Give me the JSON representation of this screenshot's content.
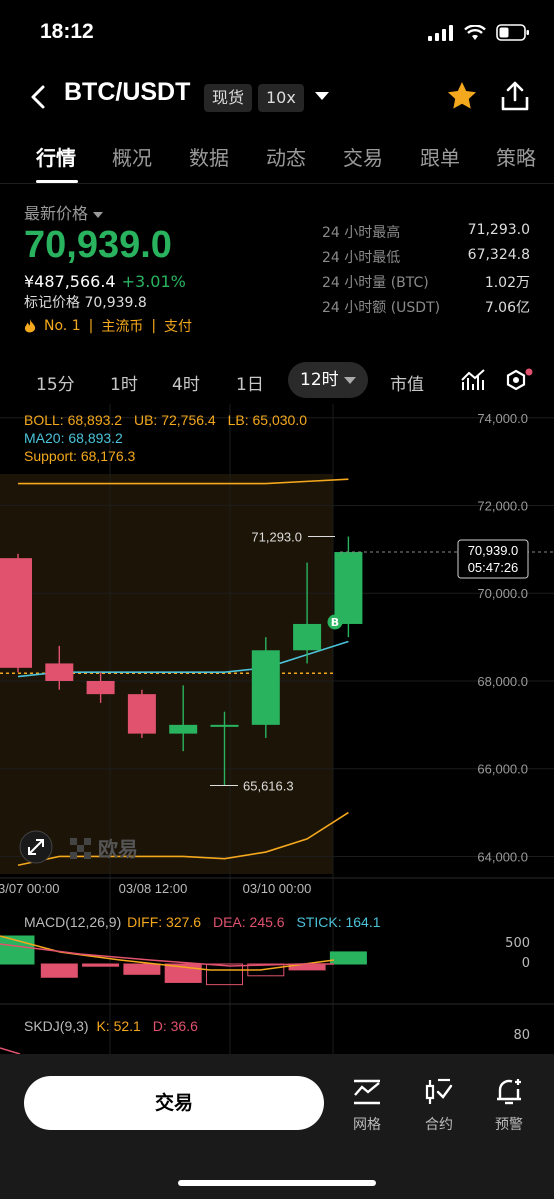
{
  "status_bar": {
    "time": "18:12"
  },
  "header": {
    "pair": "BTC/USDT",
    "market_type": "现货",
    "leverage": "10x"
  },
  "tabs": [
    {
      "label": "行情",
      "active": true
    },
    {
      "label": "概况"
    },
    {
      "label": "数据"
    },
    {
      "label": "动态"
    },
    {
      "label": "交易"
    },
    {
      "label": "跟单"
    },
    {
      "label": "策略"
    }
  ],
  "price": {
    "label": "最新价格",
    "last": "70,939.0",
    "cny": "¥487,566.4",
    "change": "+3.01%",
    "mark_label": "标记价格",
    "mark_value": "70,939.8",
    "tags": [
      "No. 1",
      "主流币",
      "支付"
    ]
  },
  "stats": [
    {
      "label": "24 小时最高",
      "value": "71,293.0"
    },
    {
      "label": "24 小时最低",
      "value": "67,324.8"
    },
    {
      "label": "24 小时量 (BTC)",
      "value": "1.02万"
    },
    {
      "label": "24 小时额 (USDT)",
      "value": "7.06亿"
    }
  ],
  "intervals": [
    "15分",
    "1时",
    "4时",
    "1日",
    "12时",
    "市值"
  ],
  "active_interval": "12时",
  "chart_legend": {
    "boll": "BOLL: 68,893.2",
    "ub": "UB: 72,756.4",
    "lb": "LB: 65,030.0",
    "ma20": "MA20: 68,893.2",
    "support": "Support: 68,176.3"
  },
  "chart_labels": {
    "high_marker": "71,293.0",
    "low_marker": "65,616.3",
    "current_price": "70,939.0",
    "countdown": "05:47:26",
    "buy_badge": "B",
    "watermark": "欧易"
  },
  "chart_data": {
    "type": "candlestick",
    "y_ticks": [
      "74,000.0",
      "72,000.0",
      "70,000.0",
      "68,000.0",
      "66,000.0",
      "64,000.0"
    ],
    "y_tick_values": [
      74000,
      72000,
      70000,
      68000,
      66000,
      64000
    ],
    "ylim": [
      63600,
      74200
    ],
    "x_ticks": [
      "3/07 00:00",
      "03/08 12:00",
      "03/10 00:00"
    ],
    "candles": [
      {
        "o": 70800,
        "h": 70900,
        "l": 68200,
        "c": 68300
      },
      {
        "o": 68400,
        "h": 68800,
        "l": 67800,
        "c": 68000
      },
      {
        "o": 68000,
        "h": 68200,
        "l": 67500,
        "c": 67700
      },
      {
        "o": 67700,
        "h": 67800,
        "l": 66700,
        "c": 66800
      },
      {
        "o": 66800,
        "h": 67900,
        "l": 66400,
        "c": 67000
      },
      {
        "o": 67000,
        "h": 67300,
        "l": 65616.3,
        "c": 67000
      },
      {
        "o": 67000,
        "h": 69000,
        "l": 66700,
        "c": 68700
      },
      {
        "o": 68700,
        "h": 70700,
        "l": 68400,
        "c": 69300
      },
      {
        "o": 69300,
        "h": 71293,
        "l": 69000,
        "c": 70939
      }
    ],
    "boll_upper": [
      72500,
      72500,
      72500,
      72500,
      72500,
      72500,
      72500,
      72550,
      72600
    ],
    "boll_lower": [
      63800,
      64000,
      64000,
      64000,
      64000,
      63950,
      64100,
      64400,
      65000
    ],
    "ma20": [
      68100,
      68200,
      68200,
      68200,
      68200,
      68200,
      68300,
      68600,
      68900
    ],
    "support": 68176.3,
    "macd": {
      "label": "MACD(12,26,9)",
      "diff": "DIFF: 327.6",
      "dea": "DEA: 245.6",
      "stick": "STICK: 164.1",
      "y_ticks": [
        "500",
        "0"
      ],
      "histogram": [
        380,
        -180,
        -30,
        -140,
        -250,
        -280,
        -160,
        -80,
        164
      ]
    },
    "kdj": {
      "label": "SKDJ(9,3)",
      "k": "K: 52.1",
      "d": "D: 36.6",
      "y_ticks": [
        "80"
      ]
    }
  },
  "bottom_bar": {
    "trade": "交易",
    "items": [
      {
        "label": "网格",
        "icon": "grid-bot-icon"
      },
      {
        "label": "合约",
        "icon": "futures-icon"
      },
      {
        "label": "预警",
        "icon": "bell-alert-icon"
      }
    ]
  },
  "colors": {
    "up": "#29b35e",
    "down": "#e0526d",
    "accent": "#f4a81d"
  }
}
